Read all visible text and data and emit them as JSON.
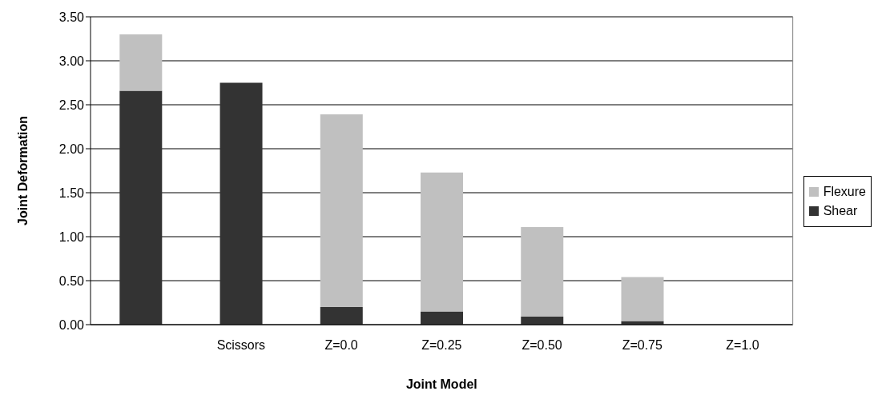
{
  "chart_data": {
    "type": "bar",
    "stacked": true,
    "xlabel": "Joint Model",
    "ylabel": "Joint Deformation",
    "categories": [
      null,
      "Scissors",
      "Z=0.0",
      "Z=0.25",
      "Z=0.50",
      "Z=0.75",
      "Z=1.0"
    ],
    "series": [
      {
        "name": "Shear",
        "color": "#333333",
        "values": [
          2.66,
          2.75,
          0.2,
          0.15,
          0.09,
          0.04,
          0
        ]
      },
      {
        "name": "Flexure",
        "color": "#c0c0c0",
        "values": [
          0.64,
          0,
          2.19,
          1.58,
          1.02,
          0.5,
          0
        ]
      }
    ],
    "ylim": [
      0,
      3.5
    ],
    "yticks": [
      {
        "value": 0,
        "label": "0.00"
      },
      {
        "value": 0.5,
        "label": "0.50"
      },
      {
        "value": 1,
        "label": "1.00"
      },
      {
        "value": 1.5,
        "label": "1.50"
      },
      {
        "value": 2,
        "label": "2.00"
      },
      {
        "value": 2.5,
        "label": "2.50"
      },
      {
        "value": 3,
        "label": "3.00"
      },
      {
        "value": 3.5,
        "label": "3.50"
      }
    ],
    "grid": "y",
    "legend": "right"
  }
}
